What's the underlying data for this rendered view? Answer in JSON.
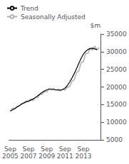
{
  "chart_data": {
    "type": "line",
    "title": "",
    "ylabel": "$m",
    "categories": [
      "Sep\n2005",
      null,
      null,
      null,
      null,
      null,
      null,
      null,
      "Sep\n2007",
      null,
      null,
      null,
      null,
      null,
      null,
      null,
      "Sep\n2009",
      null,
      null,
      null,
      null,
      null,
      null,
      null,
      "Sep\n2011",
      null,
      null,
      null,
      null,
      null,
      null,
      null,
      "Sep\n2013",
      null,
      null,
      null,
      null,
      null,
      null,
      null
    ],
    "series": [
      {
        "name": "Trend",
        "color": "#000000",
        "values": [
          13200,
          13500,
          13900,
          14300,
          14700,
          15100,
          15500,
          15800,
          16000,
          16300,
          16600,
          17000,
          17500,
          18000,
          18500,
          18900,
          19200,
          19400,
          19400,
          19300,
          19200,
          19100,
          19100,
          19300,
          19700,
          20400,
          21400,
          22500,
          23800,
          25200,
          26700,
          28100,
          29300,
          30100,
          30600,
          30900,
          31000,
          30800,
          30600,
          null
        ]
      },
      {
        "name": "Seasonally Adjusted",
        "color": "#b0b0b0",
        "values": [
          13000,
          14000,
          13700,
          14500,
          14600,
          15400,
          15300,
          16100,
          15800,
          16500,
          16100,
          17100,
          16900,
          17900,
          17900,
          18800,
          18600,
          19500,
          19100,
          19600,
          19000,
          19400,
          18900,
          19400,
          19100,
          19900,
          20100,
          21600,
          22000,
          24100,
          24500,
          26900,
          27200,
          29500,
          29500,
          31000,
          30400,
          31600,
          30500,
          31200
        ]
      }
    ],
    "ylim": [
      5000,
      35000
    ],
    "yticks": [
      5000,
      10000,
      15000,
      20000,
      25000,
      30000,
      35000
    ],
    "grid": false,
    "legend": "upper left"
  }
}
